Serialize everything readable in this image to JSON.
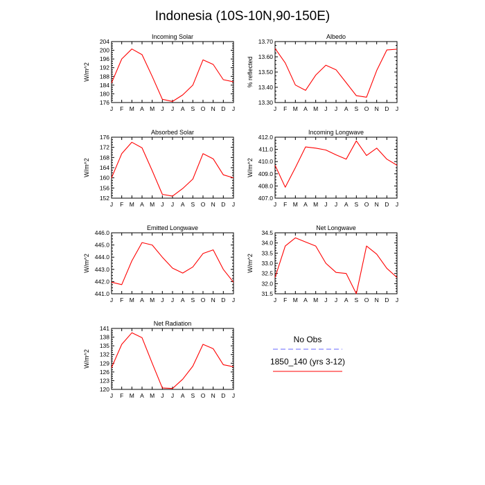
{
  "title": "Indonesia (10S-10N,90-150E)",
  "months": [
    "J",
    "F",
    "M",
    "A",
    "M",
    "J",
    "J",
    "A",
    "S",
    "O",
    "N",
    "D",
    "J"
  ],
  "colors": {
    "model": "#ff0000",
    "obs": "#6666ff",
    "axis": "#000000"
  },
  "legend": {
    "obs_label": "No Obs",
    "model_label": "1850_140 (yrs 3-12)"
  },
  "chart_data": [
    {
      "type": "line",
      "title": "Incoming Solar",
      "ylabel": "W/m^2",
      "ylim": [
        176,
        204
      ],
      "yticks": [
        "176",
        "180",
        "184",
        "188",
        "192",
        "196",
        "200",
        "204"
      ],
      "series": [
        {
          "name": "1850_140 (yrs 3-12)",
          "values": [
            185.0,
            196.0,
            200.6,
            198.0,
            188.0,
            177.5,
            176.5,
            179.5,
            184.0,
            195.6,
            193.5,
            186.5,
            185.5
          ]
        }
      ]
    },
    {
      "type": "line",
      "title": "Albedo",
      "ylabel": "% reflected",
      "ylim": [
        13.3,
        13.7
      ],
      "yticks": [
        "13.30",
        "13.40",
        "13.50",
        "13.60",
        "13.70"
      ],
      "series": [
        {
          "name": "1850_140 (yrs 3-12)",
          "values": [
            13.655,
            13.56,
            13.415,
            13.38,
            13.48,
            13.545,
            13.515,
            13.43,
            13.345,
            13.335,
            13.51,
            13.645,
            13.65
          ]
        }
      ]
    },
    {
      "type": "line",
      "title": "Absorbed Solar",
      "ylabel": "W/m^2",
      "ylim": [
        152,
        176
      ],
      "yticks": [
        "152",
        "156",
        "160",
        "164",
        "168",
        "172",
        "176"
      ],
      "series": [
        {
          "name": "1850_140 (yrs 3-12)",
          "values": [
            160.0,
            169.5,
            174.0,
            171.8,
            162.8,
            153.5,
            152.8,
            155.8,
            159.5,
            169.5,
            167.5,
            161.2,
            160.0
          ]
        }
      ]
    },
    {
      "type": "line",
      "title": "Incoming Longwave",
      "ylabel": "W/m^2",
      "ylim": [
        407.0,
        412.0
      ],
      "yticks": [
        "407.0",
        "408.0",
        "409.0",
        "410.0",
        "411.0",
        "412.0"
      ],
      "series": [
        {
          "name": "1850_140 (yrs 3-12)",
          "values": [
            409.7,
            407.9,
            409.5,
            411.2,
            411.1,
            410.95,
            410.55,
            410.2,
            411.7,
            410.5,
            411.1,
            410.2,
            409.7
          ]
        }
      ]
    },
    {
      "type": "line",
      "title": "Emitted Longwave",
      "ylabel": "W/m^2",
      "ylim": [
        441.0,
        446.0
      ],
      "yticks": [
        "441.0",
        "442.0",
        "443.0",
        "444.0",
        "445.0",
        "446.0"
      ],
      "series": [
        {
          "name": "1850_140 (yrs 3-12)",
          "values": [
            441.95,
            441.75,
            443.7,
            445.2,
            445.0,
            444.0,
            443.1,
            442.7,
            443.2,
            444.3,
            444.6,
            443.0,
            441.95
          ]
        }
      ]
    },
    {
      "type": "line",
      "title": "Net Longwave",
      "ylabel": "W/m^2",
      "ylim": [
        31.5,
        34.5
      ],
      "yticks": [
        "31.5",
        "32.0",
        "32.5",
        "33.0",
        "33.5",
        "34.0",
        "34.5"
      ],
      "series": [
        {
          "name": "1850_140 (yrs 3-12)",
          "values": [
            32.3,
            33.85,
            34.25,
            34.05,
            33.85,
            33.0,
            32.55,
            32.5,
            31.5,
            33.85,
            33.45,
            32.75,
            32.3
          ]
        }
      ]
    },
    {
      "type": "line",
      "title": "Net Radiation",
      "ylabel": "W/m^2",
      "ylim": [
        120,
        141
      ],
      "yticks": [
        "120",
        "123",
        "126",
        "129",
        "132",
        "135",
        "138",
        "141"
      ],
      "series": [
        {
          "name": "1850_140 (yrs 3-12)",
          "values": [
            127.5,
            135.5,
            139.5,
            137.8,
            129.0,
            120.5,
            120.3,
            123.5,
            128.0,
            135.5,
            134.0,
            128.5,
            127.8
          ]
        }
      ]
    }
  ]
}
